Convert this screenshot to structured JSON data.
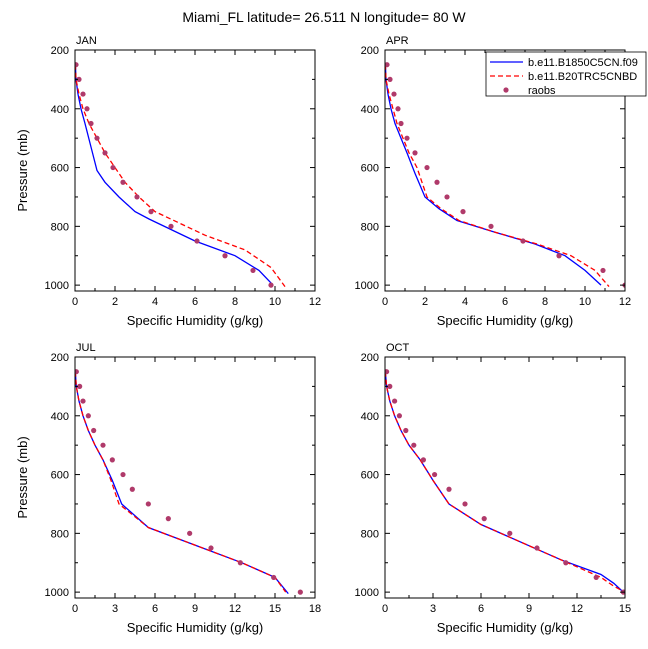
{
  "figure": {
    "title": "Miami_FL  latitude= 26.511 N longitude= 80 W"
  },
  "legend": {
    "entries": [
      {
        "name": "b.e11.B1850C5CN.f09",
        "style": "solid",
        "color": "#0000ff"
      },
      {
        "name": "b.e11.B20TRC5CNBD",
        "style": "dashed",
        "color": "#ff0000"
      },
      {
        "name": "raobs",
        "style": "marker",
        "color": "#b03a6a"
      }
    ]
  },
  "colors": {
    "solid_line": "#0000ff",
    "dashed_line": "#ff0000",
    "marker": "#b03a6a"
  },
  "chart_data": [
    {
      "type": "line",
      "panel": "JAN",
      "xlabel": "Specific Humidity (g/kg)",
      "ylabel": "Pressure (mb)",
      "xlim": [
        0,
        12
      ],
      "ylim": [
        200,
        1020
      ],
      "y_inverted": true,
      "xticks": [
        0,
        2,
        4,
        6,
        8,
        10,
        12
      ],
      "yticks": [
        200,
        400,
        600,
        800,
        1000
      ],
      "series": [
        {
          "name": "b.e11.B1850C5CN.f09",
          "style": "solid",
          "x": [
            0.02,
            0.05,
            0.15,
            0.3,
            0.5,
            0.8,
            1.1,
            1.5,
            2.2,
            3.0,
            3.7,
            6.0,
            8.0,
            9.2,
            9.9
          ],
          "y": [
            250,
            300,
            350,
            400,
            450,
            530,
            610,
            650,
            700,
            750,
            775,
            850,
            900,
            950,
            1000
          ]
        },
        {
          "name": "b.e11.B20TRC5CNBD",
          "style": "dashed",
          "x": [
            0.02,
            0.05,
            0.2,
            0.4,
            0.7,
            1.1,
            1.5,
            2.0,
            2.5,
            3.2,
            4.0,
            6.5,
            8.5,
            9.8,
            10.5
          ],
          "y": [
            250,
            300,
            350,
            400,
            450,
            500,
            550,
            600,
            650,
            700,
            750,
            830,
            880,
            940,
            1005
          ]
        },
        {
          "name": "raobs",
          "style": "marker",
          "x": [
            0.05,
            0.2,
            0.4,
            0.6,
            0.8,
            1.1,
            1.5,
            1.9,
            2.4,
            3.1,
            3.8,
            4.8,
            6.1,
            7.5,
            8.9,
            9.8
          ],
          "y": [
            250,
            300,
            350,
            400,
            450,
            500,
            550,
            600,
            650,
            700,
            750,
            800,
            850,
            900,
            950,
            1000
          ]
        }
      ]
    },
    {
      "type": "line",
      "panel": "APR",
      "xlabel": "Specific Humidity (g/kg)",
      "ylabel": "",
      "xlim": [
        0,
        12
      ],
      "ylim": [
        200,
        1020
      ],
      "y_inverted": true,
      "xticks": [
        0,
        2,
        4,
        6,
        8,
        10,
        12
      ],
      "yticks": [
        200,
        400,
        600,
        800,
        1000
      ],
      "series": [
        {
          "name": "b.e11.B1850C5CN.f09",
          "style": "solid",
          "x": [
            0.02,
            0.05,
            0.15,
            0.3,
            0.5,
            0.8,
            1.1,
            1.5,
            2.0,
            2.7,
            3.6,
            5.5,
            7.5,
            9.0,
            10.0,
            10.8
          ],
          "y": [
            250,
            300,
            350,
            400,
            450,
            500,
            550,
            620,
            700,
            740,
            780,
            820,
            860,
            900,
            950,
            1000
          ]
        },
        {
          "name": "b.e11.B20TRC5CNBD",
          "style": "dashed",
          "x": [
            0.02,
            0.05,
            0.2,
            0.4,
            0.6,
            0.9,
            1.2,
            1.6,
            2.1,
            2.8,
            3.7,
            5.5,
            7.6,
            9.3,
            10.5,
            11.2
          ],
          "y": [
            250,
            300,
            350,
            400,
            450,
            500,
            550,
            600,
            700,
            740,
            780,
            820,
            860,
            900,
            950,
            1005
          ]
        },
        {
          "name": "raobs",
          "style": "marker",
          "x": [
            0.1,
            0.25,
            0.45,
            0.65,
            0.8,
            1.1,
            1.5,
            2.1,
            2.6,
            3.1,
            3.9,
            5.3,
            6.9,
            8.7,
            10.9,
            12.0
          ],
          "y": [
            250,
            300,
            350,
            400,
            450,
            500,
            550,
            600,
            650,
            700,
            750,
            800,
            850,
            900,
            950,
            1000
          ]
        }
      ]
    },
    {
      "type": "line",
      "panel": "JUL",
      "xlabel": "Specific Humidity (g/kg)",
      "ylabel": "Pressure (mb)",
      "xlim": [
        0,
        18
      ],
      "ylim": [
        200,
        1020
      ],
      "y_inverted": true,
      "xticks": [
        0,
        3,
        6,
        9,
        12,
        15,
        18
      ],
      "yticks": [
        200,
        400,
        600,
        800,
        1000
      ],
      "series": [
        {
          "name": "b.e11.B1850C5CN.f09",
          "style": "solid",
          "x": [
            0.02,
            0.1,
            0.3,
            0.6,
            1.0,
            1.5,
            2.1,
            2.8,
            3.5,
            5.5,
            9.0,
            12.5,
            15.0,
            16.0
          ],
          "y": [
            250,
            300,
            350,
            400,
            450,
            500,
            550,
            620,
            700,
            780,
            840,
            900,
            950,
            1005
          ]
        },
        {
          "name": "b.e11.B20TRC5CNBD",
          "style": "dashed",
          "x": [
            0.02,
            0.1,
            0.3,
            0.6,
            1.0,
            1.5,
            2.1,
            2.7,
            3.3,
            5.5,
            9.0,
            12.5,
            15.0,
            15.8
          ],
          "y": [
            250,
            300,
            350,
            400,
            450,
            500,
            550,
            620,
            700,
            780,
            840,
            900,
            950,
            1000
          ]
        },
        {
          "name": "raobs",
          "style": "marker",
          "x": [
            0.1,
            0.35,
            0.6,
            1.0,
            1.4,
            2.1,
            2.8,
            3.6,
            4.3,
            5.5,
            7.0,
            8.6,
            10.2,
            12.4,
            14.9,
            16.9
          ],
          "y": [
            250,
            300,
            350,
            400,
            450,
            500,
            550,
            600,
            650,
            700,
            750,
            800,
            850,
            900,
            950,
            1000
          ]
        }
      ]
    },
    {
      "type": "line",
      "panel": "OCT",
      "xlabel": "Specific Humidity (g/kg)",
      "ylabel": "",
      "xlim": [
        0,
        15
      ],
      "ylim": [
        200,
        1020
      ],
      "y_inverted": true,
      "xticks": [
        0,
        3,
        6,
        9,
        12,
        15
      ],
      "yticks": [
        200,
        400,
        600,
        800,
        1000
      ],
      "series": [
        {
          "name": "b.e11.B1850C5CN.f09",
          "style": "solid",
          "x": [
            0.02,
            0.1,
            0.3,
            0.6,
            1.0,
            1.5,
            2.2,
            3.0,
            4.0,
            6.0,
            8.5,
            11.0,
            13.5,
            14.3,
            15.0
          ],
          "y": [
            250,
            300,
            350,
            400,
            450,
            500,
            550,
            620,
            700,
            770,
            830,
            890,
            940,
            970,
            1005
          ]
        },
        {
          "name": "b.e11.B20TRC5CNBD",
          "style": "dashed",
          "x": [
            0.02,
            0.1,
            0.3,
            0.6,
            1.0,
            1.5,
            2.2,
            3.0,
            4.0,
            6.0,
            8.5,
            11.0,
            13.5,
            14.3,
            15.0
          ],
          "y": [
            250,
            300,
            350,
            400,
            450,
            500,
            550,
            620,
            700,
            770,
            830,
            890,
            950,
            980,
            1000
          ]
        },
        {
          "name": "raobs",
          "style": "marker",
          "x": [
            0.1,
            0.3,
            0.6,
            0.9,
            1.3,
            1.8,
            2.4,
            3.1,
            4.0,
            5.0,
            6.2,
            7.8,
            9.5,
            11.3,
            13.2,
            14.9
          ],
          "y": [
            250,
            300,
            350,
            400,
            450,
            500,
            550,
            600,
            650,
            700,
            750,
            800,
            850,
            900,
            950,
            1000
          ]
        }
      ]
    }
  ]
}
